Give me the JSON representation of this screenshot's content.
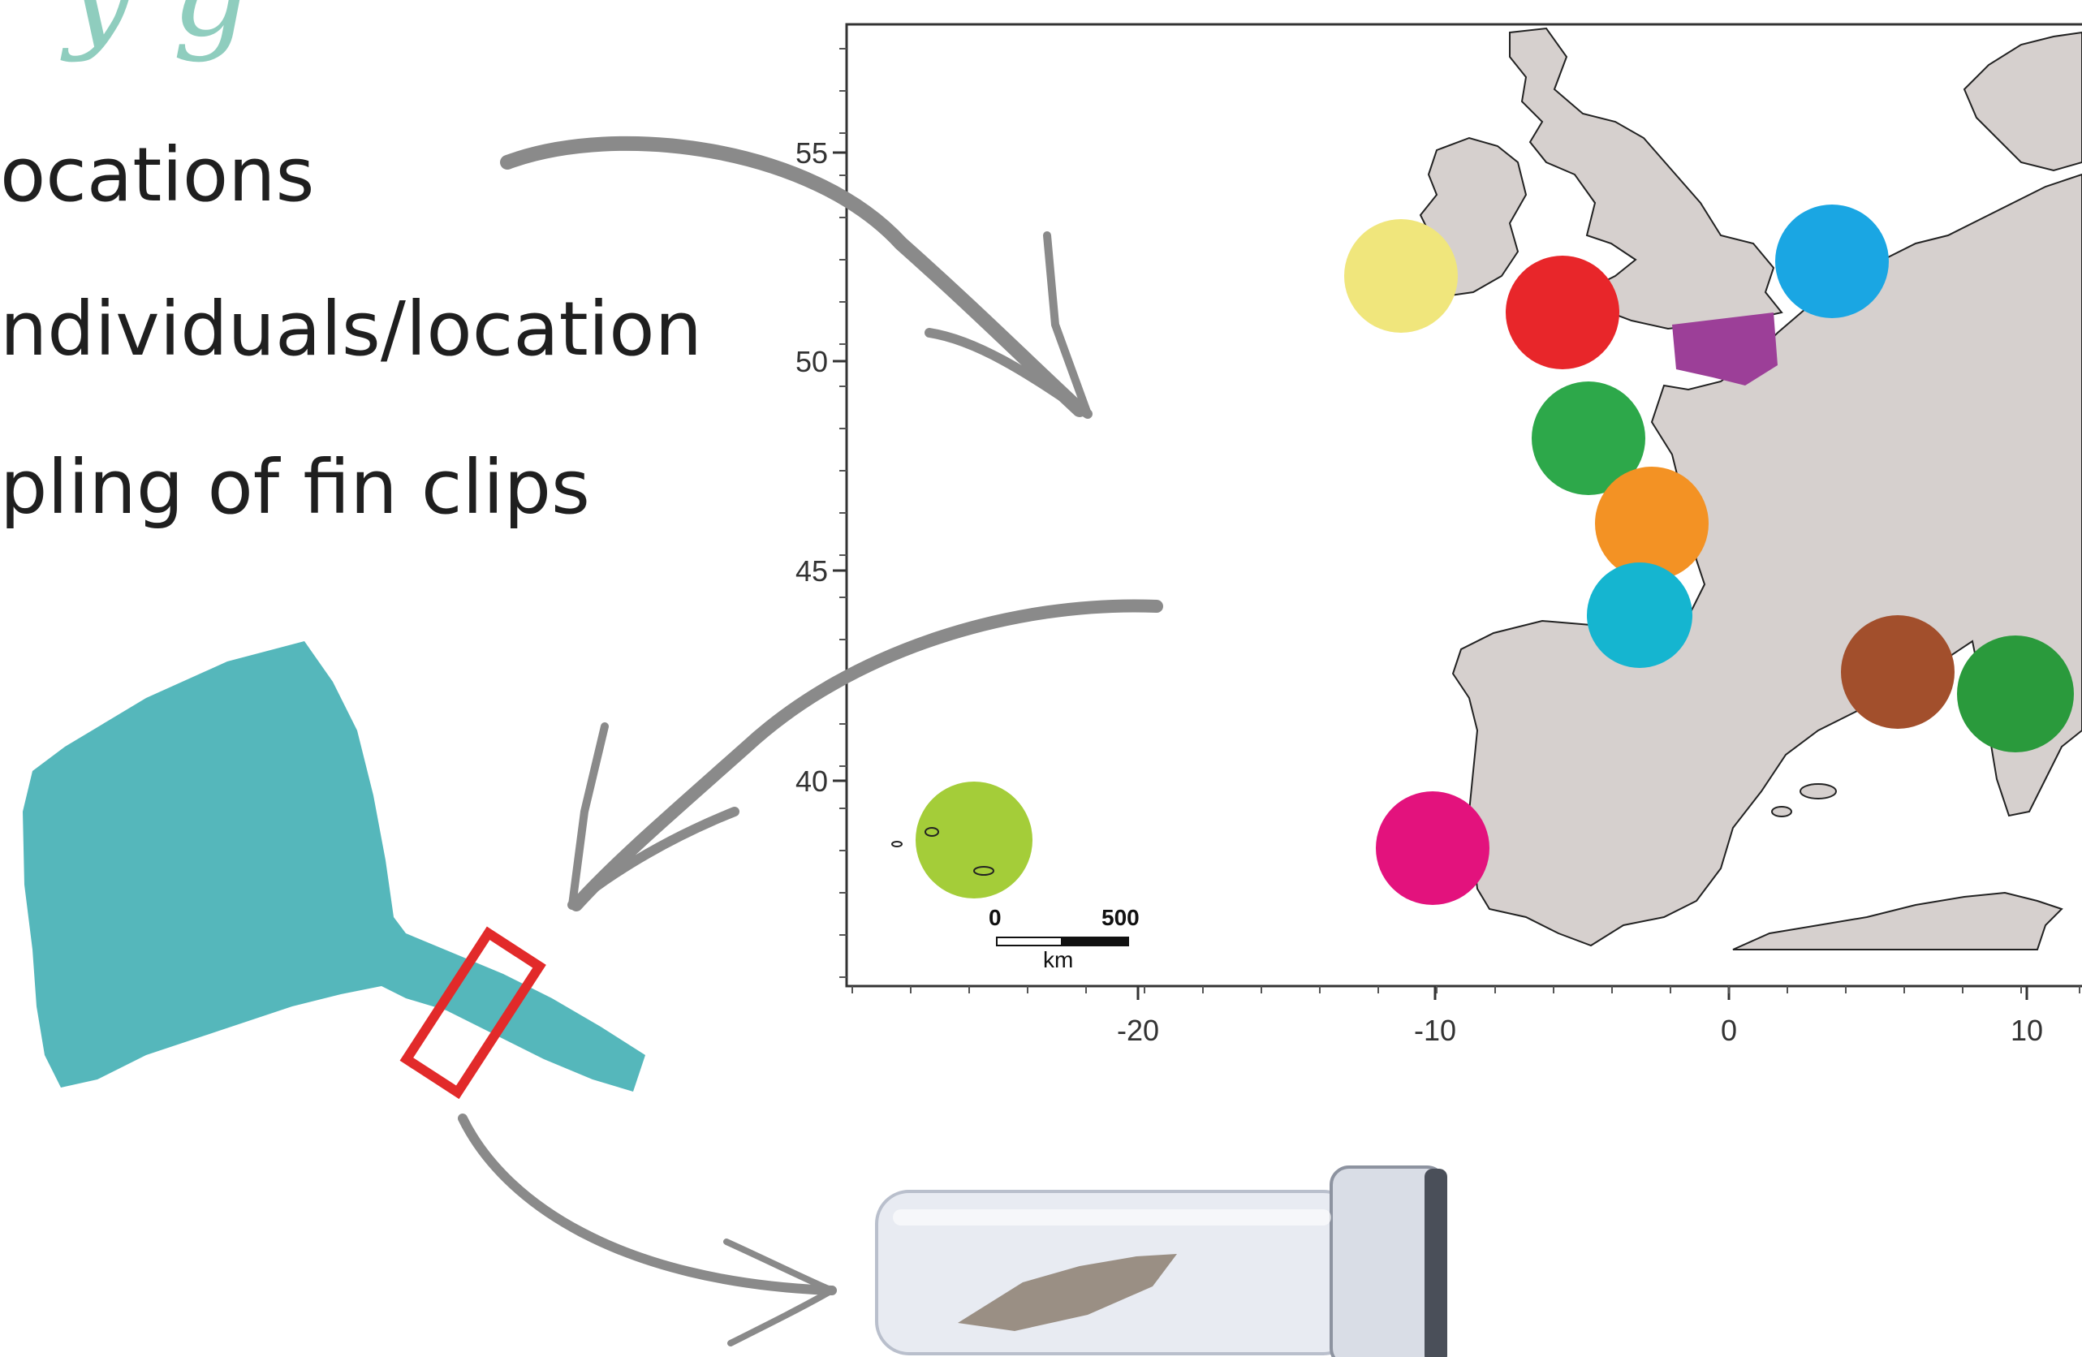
{
  "slide": {
    "title_fragment": "y g",
    "bullets": [
      "ocations",
      "ndividuals/location",
      "pling of fin clips"
    ]
  },
  "map": {
    "x_ticks": [
      "-20",
      "-10",
      "0",
      "10"
    ],
    "y_ticks": [
      "55",
      "50",
      "45",
      "40"
    ],
    "scale_bar": {
      "start": "0",
      "end": "500",
      "unit": "km"
    },
    "land_color": "#d6d0ce",
    "sampling_sites": [
      {
        "color": "#f0e67c"
      },
      {
        "color": "#e8262a"
      },
      {
        "color": "#1aa6e3"
      },
      {
        "color": "#9c3f98"
      },
      {
        "color": "#2da84a"
      },
      {
        "color": "#f39224"
      },
      {
        "color": "#15b5d0"
      },
      {
        "color": "#a24f2c"
      },
      {
        "color": "#2a9a3c"
      },
      {
        "color": "#e3127d"
      },
      {
        "color": "#a4cd39"
      }
    ]
  },
  "illustration": {
    "ray_color": "#55b7bb",
    "clip_box_color": "#e22a2a",
    "arrow_color": "#8a8a8a"
  }
}
